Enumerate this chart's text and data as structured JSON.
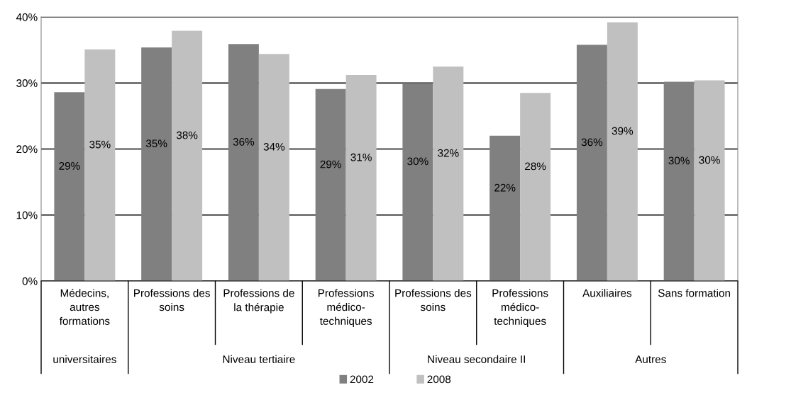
{
  "chart_data": {
    "type": "bar",
    "categories": [
      "Médecins, autres formations",
      "Professions des soins",
      "Professions de la thérapie",
      "Professions médico-techniques",
      "Professions des soins",
      "Professions médico-techniques",
      "Auxiliaires",
      "Sans formation"
    ],
    "series": [
      {
        "name": "2002",
        "color": "#808080",
        "values": [
          28.6,
          35.4,
          35.9,
          29.1,
          30.0,
          22.0,
          35.8,
          30.2
        ],
        "value_labels": [
          "29%",
          "35%",
          "36%",
          "29%",
          "30%",
          "22%",
          "36%",
          "30%"
        ]
      },
      {
        "name": "2008",
        "color": "#c0c0c0",
        "values": [
          35.1,
          37.9,
          34.4,
          31.2,
          32.5,
          28.5,
          39.2,
          30.4
        ],
        "value_labels": [
          "35%",
          "38%",
          "34%",
          "31%",
          "32%",
          "28%",
          "39%",
          "30%"
        ]
      }
    ],
    "annotations": [
      "universitaires",
      "Niveau tertiaire",
      "Niveau secondaire II",
      "Autres"
    ],
    "ylim": [
      0,
      40
    ],
    "yticks": [
      {
        "value": 0,
        "label": "0%"
      },
      {
        "value": 10,
        "label": "10%"
      },
      {
        "value": 20,
        "label": "20%"
      },
      {
        "value": 30,
        "label": "30%"
      },
      {
        "value": 40,
        "label": "40%"
      }
    ],
    "grid": "y",
    "legend": "bottom"
  }
}
